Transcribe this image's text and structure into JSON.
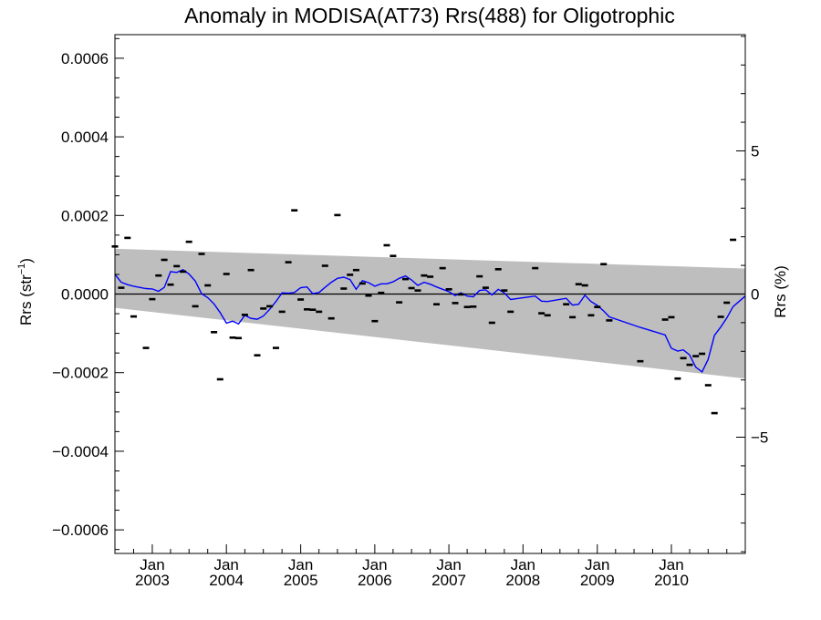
{
  "chart_data": {
    "type": "scatter",
    "title": "Anomaly in MODISA(AT73) Rrs(488) for Oligotrophic",
    "ylabel_left_main": "Rrs (str",
    "ylabel_left_sup": "−1",
    "ylabel_left_close": ")",
    "ylabel_right": "Rrs (%)",
    "xlim": [
      "2002-07-01",
      "2010-12-31"
    ],
    "ylim_left": [
      -0.00066,
      0.00066
    ],
    "ylim_right": [
      -9.06,
      9.06
    ],
    "y_ticks_left": [
      {
        "value": 0.0006,
        "label": "0.0006"
      },
      {
        "value": 0.0004,
        "label": "0.0004"
      },
      {
        "value": 0.0002,
        "label": "0.0002"
      },
      {
        "value": 0.0,
        "label": "0.0000"
      },
      {
        "value": -0.0002,
        "label": "−0.0002"
      },
      {
        "value": -0.0004,
        "label": "−0.0004"
      },
      {
        "value": -0.0006,
        "label": "−0.0006"
      }
    ],
    "y_ticks_right": [
      {
        "value": 5,
        "label": "5"
      },
      {
        "value": 0,
        "label": "0"
      },
      {
        "value": -5,
        "label": "−5"
      }
    ],
    "x_ticks": [
      {
        "date": "2003-01-01",
        "month": "Jan",
        "year": "2003"
      },
      {
        "date": "2004-01-01",
        "month": "Jan",
        "year": "2004"
      },
      {
        "date": "2005-01-01",
        "month": "Jan",
        "year": "2005"
      },
      {
        "date": "2006-01-01",
        "month": "Jan",
        "year": "2006"
      },
      {
        "date": "2007-01-01",
        "month": "Jan",
        "year": "2007"
      },
      {
        "date": "2008-01-01",
        "month": "Jan",
        "year": "2008"
      },
      {
        "date": "2009-01-01",
        "month": "Jan",
        "year": "2009"
      },
      {
        "date": "2010-01-01",
        "month": "Jan",
        "year": "2010"
      }
    ],
    "band": {
      "start": {
        "date": "2002-07-01",
        "upper": 0.000115,
        "lower": -3.5e-05
      },
      "end": {
        "date": "2010-12-31",
        "upper": 6.5e-05,
        "lower": -0.000215
      }
    },
    "points": [
      [
        "2002-07-01",
        0.000121
      ],
      [
        "2002-08-01",
        1.6e-05
      ],
      [
        "2002-09-01",
        0.000143
      ],
      [
        "2002-10-01",
        -5.7e-05
      ],
      [
        "2002-12-01",
        -0.000137
      ],
      [
        "2003-01-01",
        -1.3e-05
      ],
      [
        "2003-02-01",
        4.7e-05
      ],
      [
        "2003-03-01",
        8.7e-05
      ],
      [
        "2003-04-01",
        2.4e-05
      ],
      [
        "2003-05-01",
        7.1e-05
      ],
      [
        "2003-06-01",
        5.7e-05
      ],
      [
        "2003-07-01",
        0.000133
      ],
      [
        "2003-08-01",
        -3.1e-05
      ],
      [
        "2003-09-01",
        0.000102
      ],
      [
        "2003-10-01",
        2.2e-05
      ],
      [
        "2003-11-01",
        -9.7e-05
      ],
      [
        "2003-12-01",
        -0.000217
      ],
      [
        "2004-01-01",
        5.1e-05
      ],
      [
        "2004-02-01",
        -0.000111
      ],
      [
        "2004-03-01",
        -0.000112
      ],
      [
        "2004-04-01",
        -5.3e-05
      ],
      [
        "2004-05-01",
        6.1e-05
      ],
      [
        "2004-06-01",
        -0.000156
      ],
      [
        "2004-07-01",
        -3.7e-05
      ],
      [
        "2004-08-01",
        -3.1e-05
      ],
      [
        "2004-09-01",
        -0.000137
      ],
      [
        "2004-10-01",
        -4.5e-05
      ],
      [
        "2004-11-01",
        8.1e-05
      ],
      [
        "2004-12-01",
        0.000213
      ],
      [
        "2005-01-01",
        -1.4e-05
      ],
      [
        "2005-02-01",
        -3.9e-05
      ],
      [
        "2005-03-01",
        -4e-05
      ],
      [
        "2005-04-01",
        -4.5e-05
      ],
      [
        "2005-05-01",
        7.2e-05
      ],
      [
        "2005-06-01",
        -6.2e-05
      ],
      [
        "2005-07-01",
        0.000201
      ],
      [
        "2005-08-01",
        1.4e-05
      ],
      [
        "2005-09-01",
        4.9e-05
      ],
      [
        "2005-10-01",
        6.1e-05
      ],
      [
        "2005-11-01",
        2.7e-05
      ],
      [
        "2005-12-01",
        -4e-06
      ],
      [
        "2006-01-01",
        -6.9e-05
      ],
      [
        "2006-02-01",
        3e-06
      ],
      [
        "2006-03-01",
        0.000124
      ],
      [
        "2006-04-01",
        9.7e-05
      ],
      [
        "2006-05-01",
        -2.1e-05
      ],
      [
        "2006-06-01",
        3.8e-05
      ],
      [
        "2006-07-01",
        1.5e-05
      ],
      [
        "2006-08-01",
        9e-06
      ],
      [
        "2006-09-01",
        4.7e-05
      ],
      [
        "2006-10-01",
        4.4e-05
      ],
      [
        "2006-11-01",
        -2.6e-05
      ],
      [
        "2006-12-01",
        6.6e-05
      ],
      [
        "2007-01-01",
        1.2e-05
      ],
      [
        "2007-02-01",
        -2.3e-05
      ],
      [
        "2007-03-01",
        -1e-06
      ],
      [
        "2007-04-01",
        -3.3e-05
      ],
      [
        "2007-05-01",
        -3.2e-05
      ],
      [
        "2007-06-01",
        4.5e-05
      ],
      [
        "2007-07-01",
        1.6e-05
      ],
      [
        "2007-08-01",
        -7.3e-05
      ],
      [
        "2007-09-01",
        6.3e-05
      ],
      [
        "2007-10-01",
        9e-06
      ],
      [
        "2007-11-01",
        -4.5e-05
      ],
      [
        "2008-03-01",
        6.6e-05
      ],
      [
        "2008-04-01",
        -4.9e-05
      ],
      [
        "2008-05-01",
        -5.4e-05
      ],
      [
        "2008-08-01",
        -2.6e-05
      ],
      [
        "2008-09-01",
        -5.9e-05
      ],
      [
        "2008-10-01",
        2.5e-05
      ],
      [
        "2008-11-01",
        2.2e-05
      ],
      [
        "2008-12-01",
        -5.4e-05
      ],
      [
        "2009-01-01",
        -3.3e-05
      ],
      [
        "2009-02-01",
        7.6e-05
      ],
      [
        "2009-03-01",
        -6.7e-05
      ],
      [
        "2009-08-01",
        -0.000171
      ],
      [
        "2009-12-01",
        -6.5e-05
      ],
      [
        "2010-01-01",
        -5.9e-05
      ],
      [
        "2010-02-01",
        -0.000215
      ],
      [
        "2010-03-01",
        -0.000163
      ],
      [
        "2010-04-01",
        -0.00018
      ],
      [
        "2010-05-01",
        -0.000158
      ],
      [
        "2010-06-01",
        -0.000152
      ],
      [
        "2010-07-01",
        -0.000232
      ],
      [
        "2010-08-01",
        -0.000303
      ],
      [
        "2010-09-01",
        -5.8e-05
      ],
      [
        "2010-10-01",
        -2.2e-05
      ],
      [
        "2010-11-01",
        0.000138
      ]
    ],
    "smoothed_line": [
      [
        "2002-07-01",
        5e-05
      ],
      [
        "2002-08-01",
        3e-05
      ],
      [
        "2002-09-01",
        2.4e-05
      ],
      [
        "2002-10-01",
        2e-05
      ],
      [
        "2002-12-01",
        1.4e-05
      ],
      [
        "2003-01-01",
        1.3e-05
      ],
      [
        "2003-02-01",
        7e-06
      ],
      [
        "2003-03-01",
        1.7e-05
      ],
      [
        "2003-04-01",
        5.7e-05
      ],
      [
        "2003-05-01",
        5.5e-05
      ],
      [
        "2003-06-01",
        6.2e-05
      ],
      [
        "2003-07-01",
        5.1e-05
      ],
      [
        "2003-08-01",
        3.3e-05
      ],
      [
        "2003-09-01",
        1e-06
      ],
      [
        "2003-10-01",
        -9e-06
      ],
      [
        "2003-11-01",
        -2.5e-05
      ],
      [
        "2003-12-01",
        -4.7e-05
      ],
      [
        "2004-01-01",
        -7.4e-05
      ],
      [
        "2004-02-01",
        -6.9e-05
      ],
      [
        "2004-03-01",
        -7.6e-05
      ],
      [
        "2004-04-01",
        -5.4e-05
      ],
      [
        "2004-05-01",
        -6.2e-05
      ],
      [
        "2004-06-01",
        -6.4e-05
      ],
      [
        "2004-07-01",
        -5.6e-05
      ],
      [
        "2004-08-01",
        -3.9e-05
      ],
      [
        "2004-09-01",
        -1.9e-05
      ],
      [
        "2004-10-01",
        3e-06
      ],
      [
        "2004-11-01",
        2e-06
      ],
      [
        "2004-12-01",
        4e-06
      ],
      [
        "2005-01-01",
        1.6e-05
      ],
      [
        "2005-02-01",
        1.8e-05
      ],
      [
        "2005-03-01",
        1e-06
      ],
      [
        "2005-04-01",
        4e-06
      ],
      [
        "2005-05-01",
        1.7e-05
      ],
      [
        "2005-06-01",
        3e-05
      ],
      [
        "2005-07-01",
        4e-05
      ],
      [
        "2005-08-01",
        4.3e-05
      ],
      [
        "2005-09-01",
        3.7e-05
      ],
      [
        "2005-10-01",
        1.2e-05
      ],
      [
        "2005-11-01",
        3.4e-05
      ],
      [
        "2005-12-01",
        2.9e-05
      ],
      [
        "2006-01-01",
        2e-05
      ],
      [
        "2006-02-01",
        2.6e-05
      ],
      [
        "2006-03-01",
        2.6e-05
      ],
      [
        "2006-04-01",
        3.1e-05
      ],
      [
        "2006-05-01",
        4e-05
      ],
      [
        "2006-06-01",
        4.6e-05
      ],
      [
        "2006-07-01",
        3.6e-05
      ],
      [
        "2006-08-01",
        2.2e-05
      ],
      [
        "2006-09-01",
        3e-05
      ],
      [
        "2006-10-01",
        2.5e-05
      ],
      [
        "2006-11-01",
        1.8e-05
      ],
      [
        "2006-12-01",
        1.2e-05
      ],
      [
        "2007-01-01",
        6e-06
      ],
      [
        "2007-02-01",
        -4e-06
      ],
      [
        "2007-03-01",
        3e-06
      ],
      [
        "2007-04-01",
        -5e-06
      ],
      [
        "2007-05-01",
        -7e-06
      ],
      [
        "2007-06-01",
        9e-06
      ],
      [
        "2007-07-01",
        1.1e-05
      ],
      [
        "2007-08-01",
        -2e-06
      ],
      [
        "2007-09-01",
        1.2e-05
      ],
      [
        "2007-10-01",
        3e-06
      ],
      [
        "2007-11-01",
        -1.4e-05
      ],
      [
        "2008-03-01",
        -5e-06
      ],
      [
        "2008-04-01",
        -1.8e-05
      ],
      [
        "2008-05-01",
        -1.9e-05
      ],
      [
        "2008-08-01",
        -1.1e-05
      ],
      [
        "2008-09-01",
        -2.8e-05
      ],
      [
        "2008-10-01",
        -2.6e-05
      ],
      [
        "2008-11-01",
        -3e-06
      ],
      [
        "2008-12-01",
        -1.9e-05
      ],
      [
        "2009-01-01",
        -2.9e-05
      ],
      [
        "2009-02-01",
        -4.3e-05
      ],
      [
        "2009-03-01",
        -5.8e-05
      ],
      [
        "2009-08-01",
        -8.5e-05
      ],
      [
        "2009-12-01",
        -0.000104
      ],
      [
        "2010-01-01",
        -0.000138
      ],
      [
        "2010-02-01",
        -0.000145
      ],
      [
        "2010-03-01",
        -0.000142
      ],
      [
        "2010-04-01",
        -0.000155
      ],
      [
        "2010-05-01",
        -0.000186
      ],
      [
        "2010-06-01",
        -0.000198
      ],
      [
        "2010-07-01",
        -0.000166
      ],
      [
        "2010-08-01",
        -0.000105
      ],
      [
        "2010-09-01",
        -8.4e-05
      ],
      [
        "2010-10-01",
        -6.1e-05
      ],
      [
        "2010-11-01",
        -3.2e-05
      ],
      [
        "2010-12-31",
        -5e-06
      ]
    ],
    "zero_line": 0,
    "colors": {
      "band": "#bebebe",
      "line": "#0000ff",
      "points": "#000000",
      "axes": "#000000"
    },
    "grid": false,
    "legend": "none"
  }
}
